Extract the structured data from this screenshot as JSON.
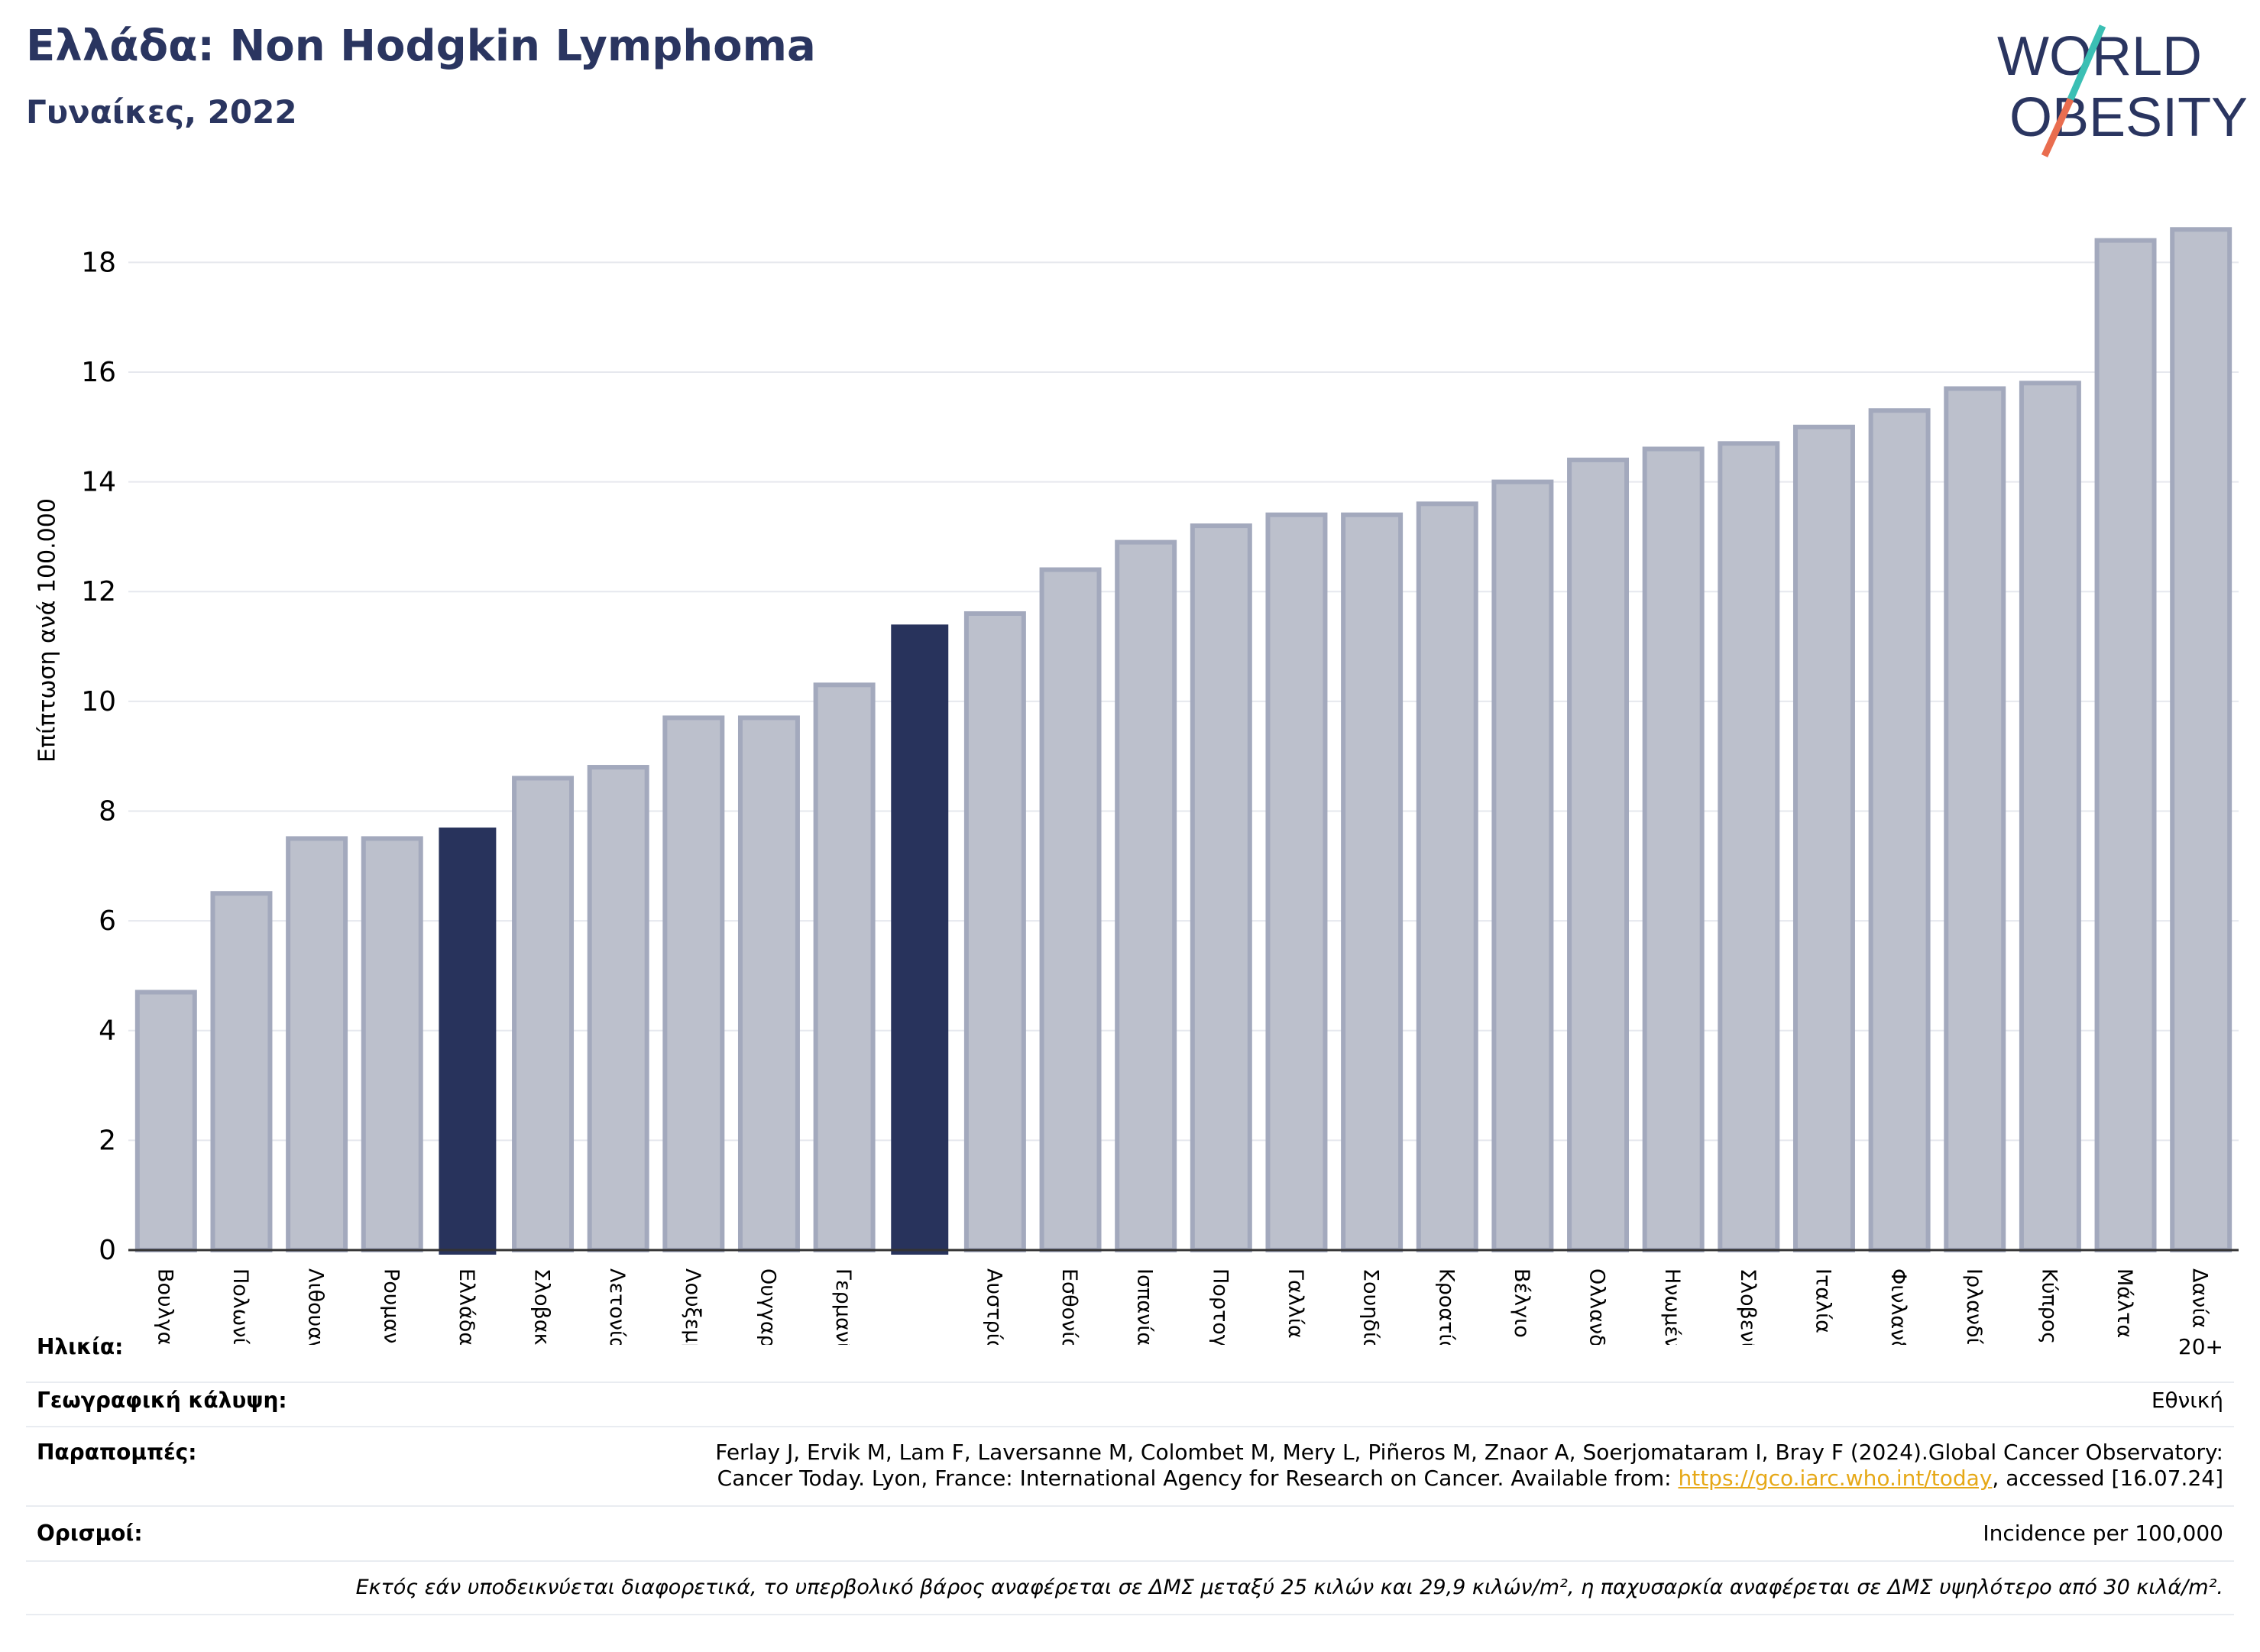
{
  "header": {
    "title": "Ελλάδα: Non Hodgkin Lymphoma",
    "subtitle": "Γυναίκες, 2022"
  },
  "logo": {
    "line1": "WORLD",
    "line2": "OBESITY"
  },
  "colors": {
    "bar_default": "#bcc0cc",
    "bar_border": "#a3a9bd",
    "bar_highlight": "#28335c",
    "title": "#2a3560",
    "logo_teal": "#3bbfb4",
    "logo_orange": "#e96d4f"
  },
  "chart_data": {
    "type": "bar",
    "ylabel": "Επίπτωση ανά 100.000",
    "ylim": [
      0,
      19.3
    ],
    "yticks": [
      0,
      2,
      4,
      6,
      8,
      10,
      12,
      14,
      16,
      18
    ],
    "grid": true,
    "categories": [
      "Βουλγαρία",
      "Πολωνία",
      "Λιθουανία",
      "Ρουμανία",
      "Ελλάδα",
      "Σλοβακία",
      "Λετονία",
      "Λουξεμβούργο",
      "Ουγγαρία",
      "Γερμανία",
      "",
      "Αυστρία",
      "Εσθονία",
      "Ισπανία",
      "Πορτογαλία",
      "Γαλλία",
      "Σουηδία",
      "Κροατία",
      "Βέλγιο",
      "Ολλανδία",
      "Ηνωμένο Βασίλειο",
      "Σλοβενία",
      "Ιταλία",
      "Φινλανδία",
      "Ιρλανδία",
      "Κύπρος",
      "Μάλτα",
      "Δανία"
    ],
    "values": [
      4.7,
      6.5,
      7.5,
      7.5,
      7.7,
      8.6,
      8.8,
      9.7,
      9.7,
      10.3,
      11.4,
      11.6,
      12.4,
      12.9,
      13.2,
      13.4,
      13.4,
      13.6,
      14.0,
      14.4,
      14.6,
      14.7,
      15.0,
      15.3,
      15.7,
      15.8,
      18.4,
      18.6
    ],
    "highlight": [
      4,
      10
    ]
  },
  "info": {
    "age_label": "Ηλικία:",
    "age_value": "20+",
    "coverage_label": "Γεωγραφική κάλυψη:",
    "coverage_value": "Εθνική",
    "refs_label": "Παραπομπές:",
    "refs_line1": "Ferlay J, Ervik M, Lam F, Laversanne M, Colombet M, Mery L, Piñeros M, Znaor A, Soerjomataram I, Bray F (2024).Global Cancer Observatory:",
    "refs_line2_prefix": "Cancer Today. Lyon, France: International Agency for Research on Cancer. Available from: ",
    "refs_link": "https://gco.iarc.who.int/today",
    "refs_line2_suffix": ", accessed [16.07.24]",
    "defs_label": "Ορισμοί:",
    "defs_value": "Incidence per 100,000"
  },
  "footnote": "Εκτός εάν υποδεικνύεται διαφορετικά, το υπερβολικό βάρος αναφέρεται σε ΔΜΣ μεταξύ 25 κιλών και 29,9 κιλών/m², η παχυσαρκία αναφέρεται σε ΔΜΣ υψηλότερο από 30 κιλά/m²."
}
